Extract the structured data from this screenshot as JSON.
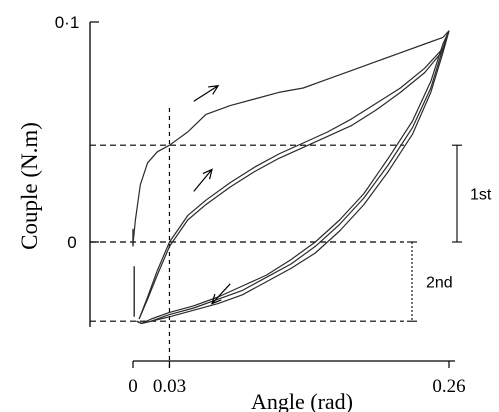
{
  "chart_data": {
    "type": "line",
    "xlabel": "Angle (rad)",
    "ylabel": "Couple (N.m)",
    "x_ticks": [
      {
        "value": 0,
        "label": "0"
      },
      {
        "value": 0.03,
        "label": "0.03"
      },
      {
        "value": 0.26,
        "label": "0.26"
      }
    ],
    "y_ticks": [
      {
        "value": 0,
        "label": "0"
      },
      {
        "value": 0.1,
        "label": "0·1"
      }
    ],
    "xlim": [
      0,
      0.26
    ],
    "ylim": [
      -0.037,
      0.1
    ],
    "reference_lines": {
      "horizontal": [
        0.044,
        0,
        -0.036
      ],
      "vertical": [
        0.03
      ]
    },
    "cycle_brackets": [
      {
        "label": "1st",
        "style": "solid",
        "from": 0,
        "to": 0.044
      },
      {
        "label": "2nd",
        "style": "dotted",
        "from": -0.036,
        "to": 0
      }
    ],
    "series": [
      {
        "x": [
          0.0,
          0.002,
          0.006,
          0.012,
          0.02,
          0.03,
          0.045,
          0.06,
          0.08,
          0.1,
          0.12,
          0.14,
          0.16,
          0.18,
          0.2,
          0.22,
          0.24,
          0.255,
          0.26
        ],
        "y": [
          -0.001,
          0.01,
          0.026,
          0.036,
          0.041,
          0.044,
          0.05,
          0.058,
          0.062,
          0.065,
          0.068,
          0.07,
          0.074,
          0.078,
          0.082,
          0.086,
          0.09,
          0.093,
          0.096
        ]
      },
      {
        "x": [
          0.005,
          0.012,
          0.02,
          0.03,
          0.045,
          0.06,
          0.08,
          0.1,
          0.12,
          0.14,
          0.16,
          0.18,
          0.2,
          0.22,
          0.24,
          0.255,
          0.26
        ],
        "y": [
          -0.035,
          -0.025,
          -0.013,
          0.0,
          0.012,
          0.019,
          0.027,
          0.034,
          0.04,
          0.045,
          0.05,
          0.056,
          0.063,
          0.07,
          0.079,
          0.088,
          0.096
        ]
      },
      {
        "x": [
          0.005,
          0.012,
          0.02,
          0.03,
          0.045,
          0.06,
          0.08,
          0.1,
          0.12,
          0.14,
          0.16,
          0.18,
          0.2,
          0.22,
          0.24,
          0.255,
          0.26
        ],
        "y": [
          -0.035,
          -0.026,
          -0.015,
          -0.002,
          0.01,
          0.017,
          0.025,
          0.032,
          0.038,
          0.043,
          0.048,
          0.053,
          0.06,
          0.068,
          0.077,
          0.087,
          0.096
        ]
      },
      {
        "x": [
          0.26,
          0.255,
          0.245,
          0.23,
          0.21,
          0.19,
          0.17,
          0.15,
          0.13,
          0.11,
          0.09,
          0.07,
          0.05,
          0.03,
          0.015,
          0.007,
          0.003
        ],
        "y": [
          0.096,
          0.09,
          0.073,
          0.055,
          0.038,
          0.022,
          0.01,
          0.0,
          -0.008,
          -0.015,
          -0.02,
          -0.025,
          -0.029,
          -0.032,
          -0.035,
          -0.037,
          -0.036
        ]
      },
      {
        "x": [
          0.26,
          0.255,
          0.245,
          0.23,
          0.21,
          0.19,
          0.17,
          0.15,
          0.13,
          0.11,
          0.09,
          0.07,
          0.05,
          0.03,
          0.015,
          0.007,
          0.003
        ],
        "y": [
          0.096,
          0.088,
          0.07,
          0.052,
          0.035,
          0.02,
          0.008,
          -0.002,
          -0.01,
          -0.016,
          -0.022,
          -0.026,
          -0.03,
          -0.033,
          -0.036,
          -0.037,
          -0.036
        ]
      },
      {
        "x": [
          0.26,
          0.255,
          0.245,
          0.23,
          0.21,
          0.19,
          0.17,
          0.15,
          0.13,
          0.11,
          0.09,
          0.07,
          0.05,
          0.03,
          0.015,
          0.007,
          0.003
        ],
        "y": [
          0.096,
          0.086,
          0.068,
          0.049,
          0.032,
          0.017,
          0.005,
          -0.005,
          -0.012,
          -0.018,
          -0.024,
          -0.028,
          -0.031,
          -0.034,
          -0.036,
          -0.037,
          -0.036
        ]
      }
    ],
    "direction_arrows": [
      {
        "x0": 0.05,
        "y0": 0.064,
        "x1": 0.07,
        "y1": 0.071
      },
      {
        "x0": 0.05,
        "y0": 0.023,
        "x1": 0.065,
        "y1": 0.033
      },
      {
        "x0": 0.08,
        "y0": -0.019,
        "x1": 0.065,
        "y1": -0.028
      }
    ],
    "grid": false,
    "legend": "none"
  },
  "colors": {
    "curve": "#2b2b2b",
    "axis": "#000000",
    "reference": "#000000"
  }
}
